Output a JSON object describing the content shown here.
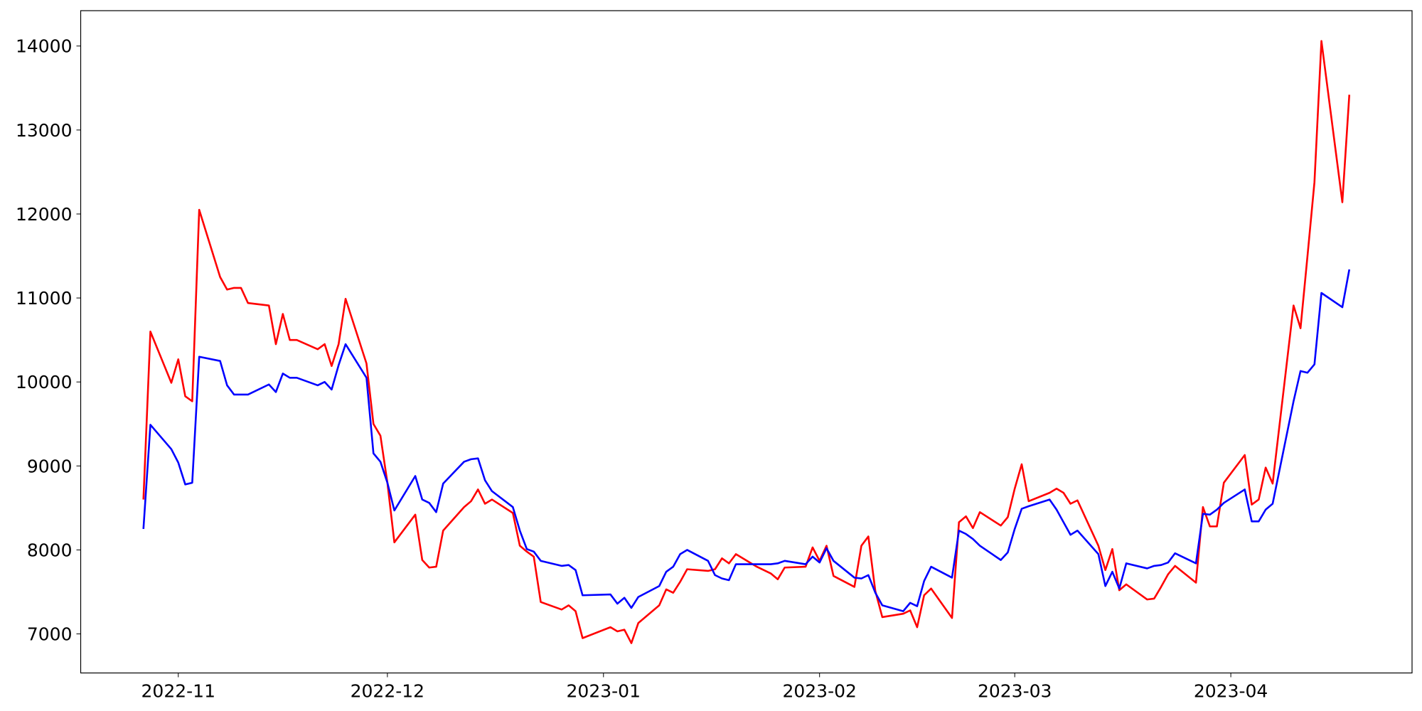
{
  "chart_data": {
    "type": "line",
    "x": [
      "2022-10-27",
      "2022-10-28",
      "2022-10-31",
      "2022-11-01",
      "2022-11-02",
      "2022-11-03",
      "2022-11-04",
      "2022-11-07",
      "2022-11-08",
      "2022-11-09",
      "2022-11-10",
      "2022-11-11",
      "2022-11-14",
      "2022-11-15",
      "2022-11-16",
      "2022-11-17",
      "2022-11-18",
      "2022-11-21",
      "2022-11-22",
      "2022-11-23",
      "2022-11-24",
      "2022-11-25",
      "2022-11-28",
      "2022-11-29",
      "2022-11-30",
      "2022-12-01",
      "2022-12-02",
      "2022-12-05",
      "2022-12-06",
      "2022-12-07",
      "2022-12-08",
      "2022-12-09",
      "2022-12-12",
      "2022-12-13",
      "2022-12-14",
      "2022-12-15",
      "2022-12-16",
      "2022-12-19",
      "2022-12-20",
      "2022-12-21",
      "2022-12-22",
      "2022-12-23",
      "2022-12-26",
      "2022-12-27",
      "2022-12-28",
      "2022-12-29",
      "2023-01-02",
      "2023-01-03",
      "2023-01-04",
      "2023-01-05",
      "2023-01-06",
      "2023-01-09",
      "2023-01-10",
      "2023-01-11",
      "2023-01-12",
      "2023-01-13",
      "2023-01-16",
      "2023-01-17",
      "2023-01-18",
      "2023-01-19",
      "2023-01-20",
      "2023-01-23",
      "2023-01-24",
      "2023-01-25",
      "2023-01-26",
      "2023-01-27",
      "2023-01-30",
      "2023-01-31",
      "2023-02-01",
      "2023-02-02",
      "2023-02-03",
      "2023-02-06",
      "2023-02-07",
      "2023-02-08",
      "2023-02-09",
      "2023-02-10",
      "2023-02-13",
      "2023-02-14",
      "2023-02-15",
      "2023-02-16",
      "2023-02-17",
      "2023-02-20",
      "2023-02-21",
      "2023-02-22",
      "2023-02-23",
      "2023-02-24",
      "2023-02-27",
      "2023-02-28",
      "2023-03-01",
      "2023-03-02",
      "2023-03-03",
      "2023-03-06",
      "2023-03-07",
      "2023-03-08",
      "2023-03-09",
      "2023-03-10",
      "2023-03-13",
      "2023-03-14",
      "2023-03-15",
      "2023-03-16",
      "2023-03-17",
      "2023-03-20",
      "2023-03-21",
      "2023-03-22",
      "2023-03-23",
      "2023-03-24",
      "2023-03-27",
      "2023-03-28",
      "2023-03-29",
      "2023-03-30",
      "2023-03-31",
      "2023-04-03",
      "2023-04-04",
      "2023-04-05",
      "2023-04-06",
      "2023-04-07",
      "2023-04-10",
      "2023-04-11",
      "2023-04-12",
      "2023-04-13",
      "2023-04-14",
      "2023-04-17",
      "2023-04-18"
    ],
    "series": [
      {
        "color": "#ff0000",
        "values": [
          8600,
          10600,
          9990,
          10270,
          9830,
          9770,
          12050,
          11250,
          11100,
          11120,
          11120,
          10940,
          10910,
          10450,
          10810,
          10500,
          10500,
          10390,
          10450,
          10190,
          10450,
          10990,
          10220,
          9500,
          9360,
          8800,
          8090,
          8420,
          7880,
          7790,
          7800,
          8230,
          8510,
          8580,
          8720,
          8550,
          8600,
          8440,
          8050,
          7980,
          7920,
          7380,
          7290,
          7340,
          7270,
          6950,
          7080,
          7030,
          7050,
          6890,
          7130,
          7340,
          7530,
          7490,
          7620,
          7770,
          7750,
          7770,
          7900,
          7840,
          7950,
          7800,
          7760,
          7720,
          7650,
          7790,
          7800,
          8030,
          7870,
          8050,
          7690,
          7560,
          8050,
          8160,
          7510,
          7200,
          7240,
          7280,
          7080,
          7460,
          7540,
          7190,
          8330,
          8400,
          8260,
          8450,
          8290,
          8390,
          8730,
          9020,
          8580,
          8680,
          8730,
          8680,
          8550,
          8590,
          8050,
          7760,
          8010,
          7520,
          7590,
          7410,
          7420,
          7560,
          7710,
          7810,
          7610,
          8510,
          8280,
          8280,
          8800,
          9130,
          8540,
          8600,
          8980,
          8790,
          10910,
          10640,
          11500,
          12380,
          14060,
          12140,
          13420
        ]
      },
      {
        "color": "#0000ff",
        "values": [
          8250,
          9490,
          9200,
          9040,
          8780,
          8800,
          10300,
          10250,
          9960,
          9850,
          9850,
          9850,
          9970,
          9880,
          10100,
          10050,
          10050,
          9960,
          10000,
          9910,
          10200,
          10450,
          10050,
          9150,
          9050,
          8800,
          8470,
          8880,
          8600,
          8560,
          8450,
          8790,
          9050,
          9080,
          9090,
          8830,
          8700,
          8510,
          8230,
          8010,
          7980,
          7870,
          7810,
          7820,
          7760,
          7460,
          7470,
          7360,
          7430,
          7310,
          7440,
          7570,
          7740,
          7800,
          7950,
          8000,
          7870,
          7700,
          7660,
          7640,
          7830,
          7830,
          7830,
          7830,
          7840,
          7870,
          7830,
          7920,
          7850,
          8020,
          7870,
          7670,
          7660,
          7700,
          7490,
          7340,
          7270,
          7370,
          7330,
          7630,
          7800,
          7670,
          8230,
          8190,
          8130,
          8050,
          7880,
          7970,
          8250,
          8490,
          8520,
          8600,
          8480,
          8330,
          8180,
          8230,
          7950,
          7570,
          7740,
          7540,
          7840,
          7780,
          7810,
          7820,
          7850,
          7960,
          7840,
          8430,
          8420,
          8480,
          8560,
          8720,
          8340,
          8340,
          8480,
          8550,
          9770,
          10130,
          10110,
          10210,
          11060,
          10890,
          11340
        ]
      }
    ],
    "xlim": [
      "2022-10-18",
      "2023-04-27"
    ],
    "xticks": [
      {
        "value": "2022-11-01",
        "label": "2022-11"
      },
      {
        "value": "2022-12-01",
        "label": "2022-12"
      },
      {
        "value": "2023-01-01",
        "label": "2023-01"
      },
      {
        "value": "2023-02-01",
        "label": "2023-02"
      },
      {
        "value": "2023-03-01",
        "label": "2023-03"
      },
      {
        "value": "2023-04-01",
        "label": "2023-04"
      }
    ],
    "ylim": [
      6535,
      14421
    ],
    "yticks": [
      7000,
      8000,
      9000,
      10000,
      11000,
      12000,
      13000,
      14000
    ],
    "grid": false
  }
}
